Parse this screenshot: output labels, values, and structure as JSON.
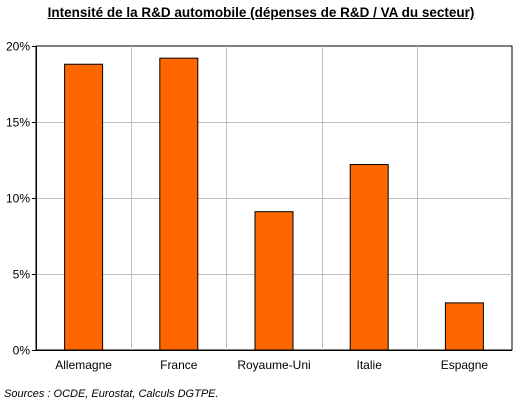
{
  "chart_data": {
    "type": "bar",
    "title": "Intensité de la R&D automobile (dépenses de R&D / VA du secteur)",
    "categories": [
      "Allemagne",
      "France",
      "Royaume-Uni",
      "Italie",
      "Espagne"
    ],
    "values": [
      18.8,
      19.2,
      9.1,
      12.2,
      3.1
    ],
    "ylim": [
      0,
      20
    ],
    "yticks": [
      0,
      5,
      10,
      15,
      20
    ],
    "ytick_labels": [
      "0%",
      "5%",
      "10%",
      "15%",
      "20%"
    ],
    "xlabel": "",
    "ylabel": "",
    "grid": true,
    "bar_color": "#ff6600",
    "source": "Sources : OCDE, Eurostat, Calculs DGTPE."
  }
}
